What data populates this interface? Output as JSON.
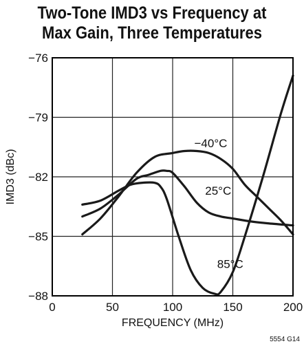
{
  "chart_data": {
    "type": "line",
    "title_line1": "Two-Tone IMD3 vs Frequency at",
    "title_line2": "Max Gain, Three Temperatures",
    "xlabel": "FREQUENCY (MHz)",
    "ylabel": "IMD3 (dBc)",
    "xlim": [
      0,
      200
    ],
    "ylim": [
      -88,
      -76
    ],
    "x_ticks": [
      0,
      50,
      100,
      150,
      200
    ],
    "y_ticks": [
      -76,
      -79,
      -82,
      -85,
      -88
    ],
    "x_tick_labels": [
      "0",
      "50",
      "100",
      "150",
      "200"
    ],
    "y_tick_labels": [
      "−76",
      "−79",
      "−82",
      "−85",
      "−88"
    ],
    "grid": true,
    "footnote": "5554 G14",
    "series": [
      {
        "name": "−40°C",
        "x": [
          25,
          40,
          55,
          70,
          85,
          100,
          110,
          120,
          130,
          140,
          150,
          160,
          170,
          180,
          190,
          200
        ],
        "y": [
          -84.9,
          -84.1,
          -83.0,
          -81.8,
          -81.0,
          -80.8,
          -80.7,
          -80.7,
          -80.8,
          -81.1,
          -81.6,
          -82.4,
          -83.0,
          -83.6,
          -84.2,
          -84.9
        ]
      },
      {
        "name": "25°C",
        "x": [
          25,
          40,
          55,
          70,
          80,
          90,
          95,
          100,
          110,
          120,
          130,
          140,
          150,
          165,
          180,
          200
        ],
        "y": [
          -84.0,
          -83.6,
          -82.9,
          -82.1,
          -81.9,
          -81.7,
          -81.7,
          -81.8,
          -82.5,
          -83.3,
          -83.8,
          -84.0,
          -84.1,
          -84.25,
          -84.35,
          -84.45
        ]
      },
      {
        "name": "85°C",
        "x": [
          25,
          40,
          55,
          65,
          75,
          85,
          90,
          95,
          105,
          115,
          125,
          135,
          140,
          150,
          160,
          175,
          190,
          200
        ],
        "y": [
          -83.4,
          -83.2,
          -82.7,
          -82.4,
          -82.3,
          -82.3,
          -82.5,
          -83.1,
          -85.0,
          -86.7,
          -87.6,
          -87.9,
          -87.8,
          -86.8,
          -85.0,
          -82.0,
          -78.8,
          -76.9
        ]
      }
    ],
    "labels": [
      {
        "text": "−40°C",
        "x": 118,
        "y": -80.5
      },
      {
        "text": "25°C",
        "x": 127,
        "y": -82.9
      },
      {
        "text": "85°C",
        "x": 137,
        "y": -86.6
      }
    ]
  }
}
